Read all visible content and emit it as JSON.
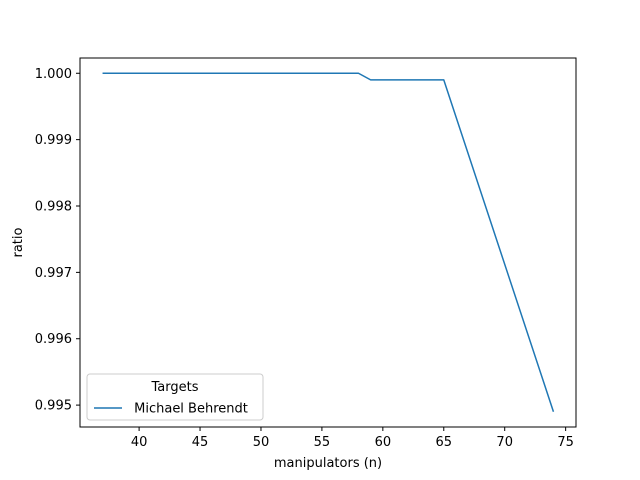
{
  "chart_data": {
    "type": "line",
    "title": "",
    "xlabel": "manipulators (n)",
    "ylabel": "ratio",
    "xlim": [
      35.15,
      75.85
    ],
    "ylim": [
      0.99467,
      1.00023
    ],
    "x_ticks": [
      40,
      45,
      50,
      55,
      60,
      65,
      70,
      75
    ],
    "x_tick_labels": [
      "40",
      "45",
      "50",
      "55",
      "60",
      "65",
      "70",
      "75"
    ],
    "y_ticks": [
      0.995,
      0.996,
      0.997,
      0.998,
      0.999,
      1.0
    ],
    "y_tick_labels": [
      "0.995",
      "0.996",
      "0.997",
      "0.998",
      "0.999",
      "1.000"
    ],
    "grid": false,
    "legend": {
      "title": "Targets",
      "placement": "lower-left"
    },
    "series": [
      {
        "name": " Michael Behrendt",
        "color": "#1f77b4",
        "x": [
          37,
          58,
          59,
          65,
          74
        ],
        "y": [
          1.0,
          1.0,
          0.9999,
          0.9999,
          0.9949
        ]
      }
    ]
  }
}
